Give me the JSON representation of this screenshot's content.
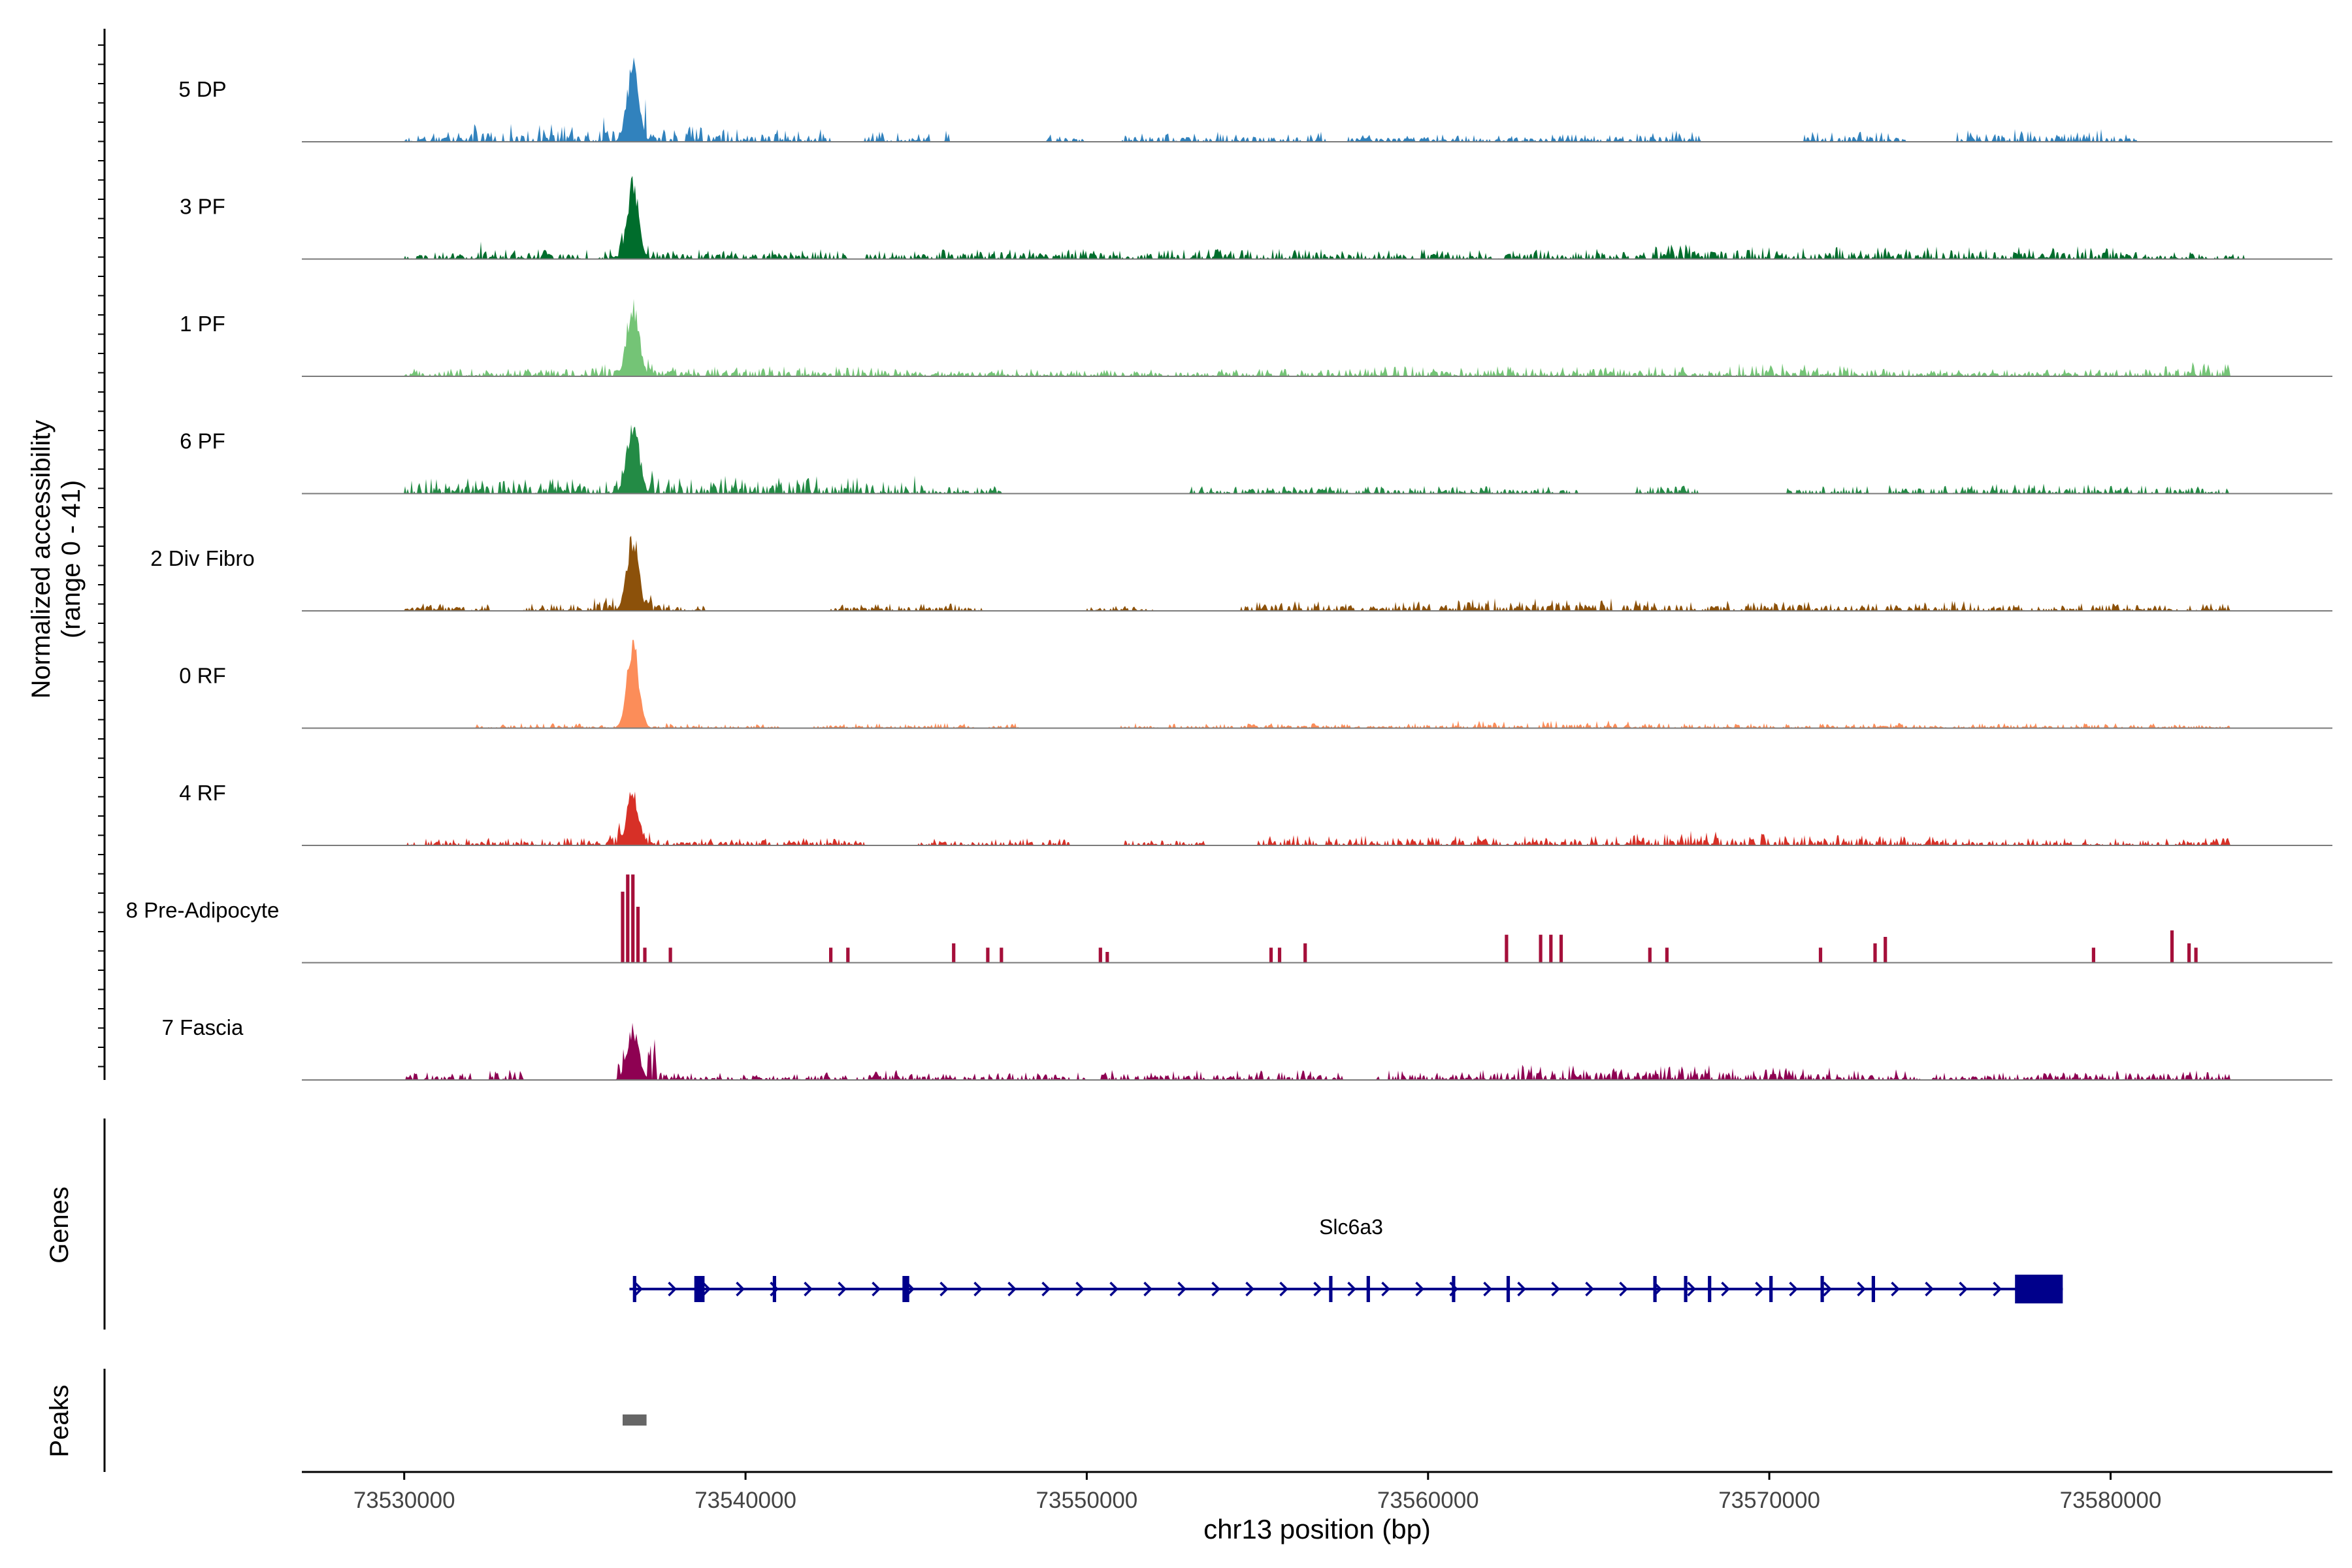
{
  "chart_data": {
    "type": "area",
    "title": "",
    "region": {
      "chromosome": "chr13",
      "start": 73527000,
      "end": 73586500
    },
    "xlabel": "chr13 position (bp)",
    "ylabel_line1": "Normalized accessibility",
    "ylabel_line2": "(range 0 - 41)",
    "yrange": [
      0,
      41
    ],
    "x_ticks": [
      73530000,
      73540000,
      73550000,
      73560000,
      73570000,
      73580000
    ],
    "x_tick_labels": [
      "73530000",
      "73540000",
      "73550000",
      "73560000",
      "73570000",
      "73580000"
    ],
    "coverage_tracks": [
      {
        "name": "5 DP",
        "color": "#3182bd",
        "style": "dense",
        "peak_position": 73536700,
        "peak_value": 41,
        "regions": [
          [
            73530000,
            73532500,
            4
          ],
          [
            73532000,
            73535500,
            7
          ],
          [
            73535500,
            73536400,
            10
          ],
          [
            73536400,
            73537200,
            22
          ],
          [
            73537200,
            73539500,
            6
          ],
          [
            73539500,
            73542500,
            5
          ],
          [
            73543500,
            73545500,
            4
          ],
          [
            73545800,
            73546000,
            11
          ],
          [
            73548800,
            73550000,
            3
          ],
          [
            73551000,
            73557000,
            4
          ],
          [
            73557500,
            73566000,
            3
          ],
          [
            73566000,
            73567500,
            5
          ],
          [
            73567500,
            73568000,
            9
          ],
          [
            73571000,
            73574000,
            4
          ],
          [
            73575500,
            73579800,
            5
          ],
          [
            73579800,
            73580800,
            3
          ]
        ]
      },
      {
        "name": "3 PF",
        "color": "#006d2c",
        "style": "dense",
        "peak_position": 73536700,
        "peak_value": 40,
        "regions": [
          [
            73530000,
            73532000,
            3
          ],
          [
            73532000,
            73532500,
            7
          ],
          [
            73532500,
            73536300,
            4
          ],
          [
            73536300,
            73537200,
            12
          ],
          [
            73537200,
            73543000,
            4
          ],
          [
            73543500,
            73566500,
            4
          ],
          [
            73566500,
            73568500,
            6
          ],
          [
            73568500,
            73580500,
            5
          ],
          [
            73580500,
            73584000,
            3
          ]
        ]
      },
      {
        "name": "1 PF",
        "color": "#74c476",
        "style": "dense",
        "peak_position": 73536700,
        "peak_value": 41,
        "regions": [
          [
            73530000,
            73535500,
            3
          ],
          [
            73535500,
            73537500,
            7
          ],
          [
            73537500,
            73545500,
            4
          ],
          [
            73545500,
            73558000,
            3
          ],
          [
            73558000,
            73568000,
            4
          ],
          [
            73568000,
            73572500,
            5
          ],
          [
            73572500,
            73581500,
            3
          ],
          [
            73581500,
            73583500,
            6
          ]
        ]
      },
      {
        "name": "6 PF",
        "color": "#238b45",
        "style": "dense",
        "peak_position": 73536700,
        "peak_value": 41,
        "regions": [
          [
            73530000,
            73536300,
            6
          ],
          [
            73536300,
            73537300,
            14
          ],
          [
            73537300,
            73545500,
            7
          ],
          [
            73545500,
            73547500,
            3
          ],
          [
            73553000,
            73558500,
            3
          ],
          [
            73558500,
            73563000,
            3
          ],
          [
            73563000,
            73564500,
            3
          ],
          [
            73566000,
            73568000,
            3
          ],
          [
            73570500,
            73573000,
            3
          ],
          [
            73573500,
            73578500,
            4
          ],
          [
            73578500,
            73583500,
            4
          ]
        ]
      },
      {
        "name": "2 Div Fibro",
        "color": "#8c510a",
        "style": "dense",
        "peak_position": 73536700,
        "peak_value": 40,
        "regions": [
          [
            73530000,
            73532500,
            3
          ],
          [
            73533500,
            73535500,
            3
          ],
          [
            73535500,
            73537500,
            7
          ],
          [
            73537500,
            73538800,
            3
          ],
          [
            73542500,
            73547000,
            3
          ],
          [
            73550000,
            73552000,
            2
          ],
          [
            73554500,
            73560500,
            4
          ],
          [
            73560500,
            73566500,
            5
          ],
          [
            73566500,
            73568500,
            4
          ],
          [
            73568500,
            73576500,
            4
          ],
          [
            73576500,
            73583500,
            3
          ]
        ]
      },
      {
        "name": "0 RF",
        "color": "#fc8d59",
        "style": "dense",
        "peak_position": 73536700,
        "peak_value": 48,
        "regions": [
          [
            73532000,
            73536300,
            2
          ],
          [
            73536300,
            73537200,
            4
          ],
          [
            73537200,
            73541000,
            2
          ],
          [
            73542000,
            73548000,
            2
          ],
          [
            73551000,
            73560000,
            2
          ],
          [
            73560000,
            73566000,
            3
          ],
          [
            73566000,
            73572000,
            2
          ],
          [
            73572000,
            73577000,
            2
          ],
          [
            73577000,
            73583500,
            2
          ]
        ]
      },
      {
        "name": "4 RF",
        "color": "#d73027",
        "style": "dense",
        "peak_position": 73536700,
        "peak_value": 30,
        "regions": [
          [
            73530000,
            73536000,
            3
          ],
          [
            73536000,
            73537200,
            12
          ],
          [
            73537200,
            73540500,
            3
          ],
          [
            73540500,
            73543500,
            3
          ],
          [
            73545000,
            73549500,
            3
          ],
          [
            73551000,
            73553500,
            2
          ],
          [
            73555000,
            73566000,
            4
          ],
          [
            73566000,
            73570000,
            6
          ],
          [
            73570000,
            73575000,
            4
          ],
          [
            73575000,
            73583500,
            3
          ]
        ]
      },
      {
        "name": "8 Pre-Adipocyte",
        "color": "#a50f3a",
        "style": "sparse",
        "bars": [
          [
            73536400,
            33
          ],
          [
            73536550,
            44
          ],
          [
            73536700,
            41
          ],
          [
            73536850,
            26
          ],
          [
            73537050,
            7
          ],
          [
            73537800,
            7
          ],
          [
            73542500,
            7
          ],
          [
            73543000,
            7
          ],
          [
            73546100,
            9
          ],
          [
            73547100,
            7
          ],
          [
            73547500,
            7
          ],
          [
            73550400,
            7
          ],
          [
            73550600,
            5
          ],
          [
            73555400,
            7
          ],
          [
            73555650,
            7
          ],
          [
            73556400,
            9
          ],
          [
            73562300,
            13
          ],
          [
            73563300,
            13
          ],
          [
            73563600,
            13
          ],
          [
            73563900,
            13
          ],
          [
            73566500,
            7
          ],
          [
            73567000,
            7
          ],
          [
            73571500,
            7
          ],
          [
            73573100,
            9
          ],
          [
            73573400,
            12
          ],
          [
            73579500,
            7
          ],
          [
            73581800,
            15
          ],
          [
            73582300,
            9
          ],
          [
            73582500,
            7
          ]
        ]
      },
      {
        "name": "7 Fascia",
        "color": "#8e0152",
        "style": "dense",
        "peak_position": 73536700,
        "peak_value": 28,
        "regions": [
          [
            73530000,
            73532000,
            3
          ],
          [
            73532500,
            73533500,
            4
          ],
          [
            73536200,
            73537500,
            16
          ],
          [
            73537500,
            73539500,
            3
          ],
          [
            73539500,
            73543000,
            3
          ],
          [
            73543200,
            73544600,
            4
          ],
          [
            73544600,
            73550000,
            3
          ],
          [
            73550400,
            73557500,
            4
          ],
          [
            73558500,
            73562500,
            4
          ],
          [
            73562500,
            73569000,
            6
          ],
          [
            73569000,
            73574000,
            5
          ],
          [
            73574000,
            73580000,
            3
          ],
          [
            73580000,
            73583500,
            4
          ]
        ]
      }
    ],
    "gene_track": {
      "label": "Genes",
      "gene_name": "Slc6a3",
      "color": "#00008b",
      "start": 73536600,
      "end": 73578600,
      "strand": "+",
      "exons": [
        [
          73536700,
          73536800
        ],
        [
          73538500,
          73538800
        ],
        [
          73540800,
          73540900
        ],
        [
          73544600,
          73544800
        ],
        [
          73557100,
          73557200
        ],
        [
          73558200,
          73558300
        ],
        [
          73560700,
          73560800
        ],
        [
          73562300,
          73562400
        ],
        [
          73566600,
          73566700
        ],
        [
          73567500,
          73567600
        ],
        [
          73568200,
          73568300
        ],
        [
          73570000,
          73570100
        ],
        [
          73571500,
          73571600
        ],
        [
          73573000,
          73573100
        ],
        [
          73577200,
          73578600
        ]
      ]
    },
    "peaks_track": {
      "label": "Peaks",
      "color": "#666666",
      "peaks": [
        [
          73536400,
          73537100
        ]
      ]
    }
  }
}
